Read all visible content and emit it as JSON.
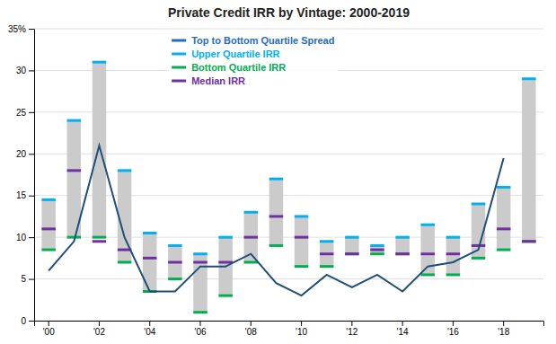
{
  "chart_data": {
    "type": "bar",
    "title": "Private Credit IRR by Vintage: 2000-2019",
    "categories": [
      "'00",
      null,
      "'02",
      null,
      "'04",
      null,
      "'06",
      null,
      "'08",
      null,
      "'10",
      null,
      "'12",
      null,
      "'14",
      null,
      "'16",
      null,
      "'18",
      null
    ],
    "color": "#cbcbcb",
    "series": [
      {
        "name": "Upper Quartile IRR",
        "type": "tick",
        "color": "#00b0f0",
        "values": [
          14.5,
          24.0,
          31.0,
          18.0,
          10.5,
          9.0,
          8.0,
          10.0,
          13.0,
          17.0,
          12.5,
          9.5,
          10.0,
          9.0,
          10.0,
          11.5,
          10.0,
          14.0,
          16.0,
          29.0
        ]
      },
      {
        "name": "Bottom Quartile IRR",
        "type": "tick",
        "color": "#00b050",
        "values": [
          8.5,
          10.0,
          10.0,
          7.0,
          3.5,
          5.0,
          1.0,
          3.0,
          7.0,
          9.0,
          6.5,
          6.5,
          8.0,
          8.0,
          8.0,
          5.5,
          5.5,
          7.5,
          8.5,
          9.5
        ]
      },
      {
        "name": "Median IRR",
        "type": "tick",
        "color": "#7030a0",
        "values": [
          11.0,
          18.0,
          9.5,
          8.5,
          7.5,
          7.0,
          7.0,
          7.0,
          10.0,
          12.5,
          10.0,
          8.0,
          8.0,
          8.5,
          8.0,
          8.0,
          8.0,
          9.0,
          11.0,
          9.5
        ]
      },
      {
        "type": "line",
        "color": "#1f4e79",
        "values": [
          6.0,
          9.5,
          21.0,
          10.0,
          3.5,
          3.5,
          6.5,
          6.5,
          8.0,
          4.5,
          3.0,
          5.5,
          4.0,
          5.5,
          3.5,
          6.5,
          7.0,
          8.5,
          19.5,
          null
        ]
      }
    ],
    "annotations": [
      {
        "text": "Top to Bottom Quartile Spread",
        "color": "#1f6dbf"
      }
    ],
    "ylim": [
      0,
      35
    ],
    "yticks": [
      0,
      5,
      10,
      15,
      20,
      25,
      30,
      {
        "value": 35,
        "label": "35%"
      }
    ],
    "grid": true
  }
}
